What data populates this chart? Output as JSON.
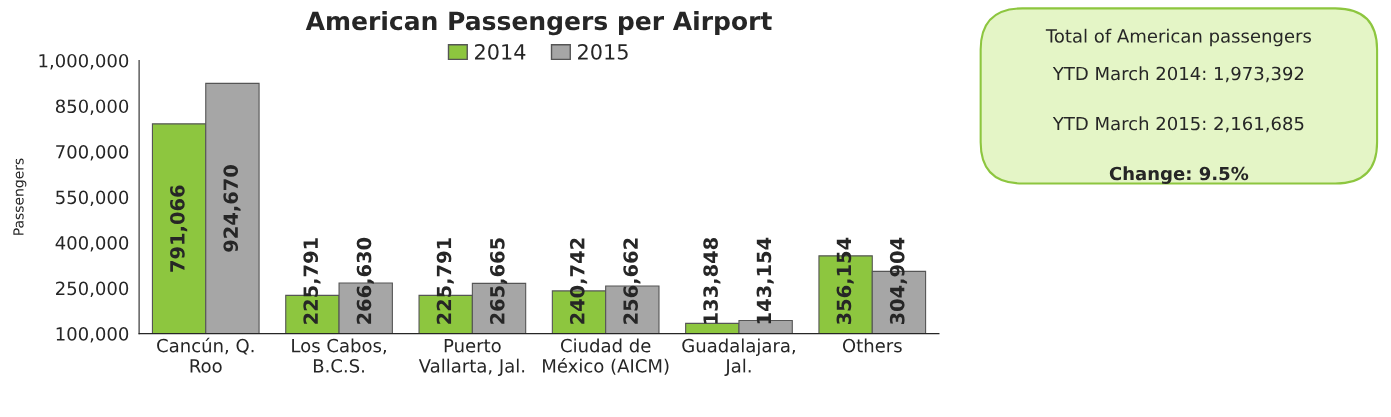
{
  "chart_data": {
    "type": "bar",
    "title": "American Passengers per Airport",
    "ylabel": "Passengers",
    "categories": [
      "Cancún, Q.\nRoo",
      "Los Cabos,\nB.C.S.",
      "Puerto\nVallarta, Jal.",
      "Ciudad de\nMéxico (AICM)",
      "Guadalajara,\nJal.",
      "Others"
    ],
    "series": [
      {
        "name": "2014",
        "color": "#8dc63f",
        "values": [
          791066,
          225791,
          225791,
          240742,
          133848,
          356154
        ],
        "value_labels": [
          "791,066",
          "225,791",
          "225,791",
          "240,742",
          "133,848",
          "356,154"
        ]
      },
      {
        "name": "2015",
        "color": "#a6a6a6",
        "values": [
          924670,
          266630,
          265665,
          256662,
          143154,
          304904
        ],
        "value_labels": [
          "924,670",
          "266,630",
          "265,665",
          "256,662",
          "143,154",
          "304,904"
        ]
      }
    ],
    "ylim": [
      100000,
      1000000
    ],
    "yticks": [
      {
        "value": 100000,
        "label": "100,000"
      },
      {
        "value": 250000,
        "label": "250,000"
      },
      {
        "value": 400000,
        "label": "400,000"
      },
      {
        "value": 550000,
        "label": "550,000"
      },
      {
        "value": 700000,
        "label": "700,000"
      },
      {
        "value": 850000,
        "label": "850,000"
      },
      {
        "value": 1000000,
        "label": "1,000,000"
      }
    ],
    "grid": false,
    "legend": "top",
    "annotations": [
      "Total of American passengers",
      "YTD March 2014: 1,973,392",
      "YTD March 2015: 2,161,685",
      "Change: 9.5%"
    ]
  }
}
